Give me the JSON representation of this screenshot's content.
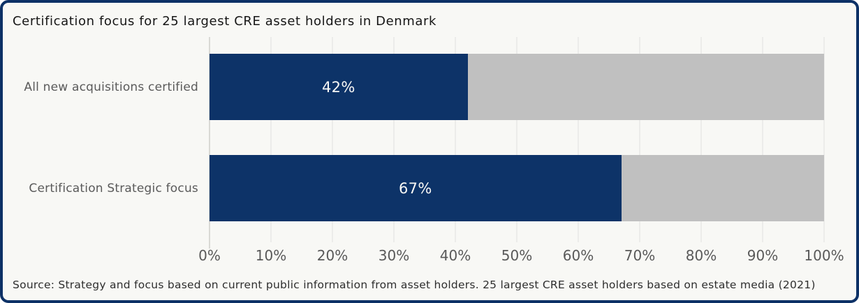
{
  "title": "Certification focus for 25 largest CRE asset holders in Denmark",
  "source": "Source: Strategy and focus based on current public information from asset holders. 25 largest CRE asset holders based on estate media (2021)",
  "chart_data": {
    "type": "bar",
    "orientation": "horizontal",
    "title": "Certification focus for 25 largest CRE asset holders in Denmark",
    "categories": [
      "All new acquisitions certified",
      "Certification Strategic focus"
    ],
    "values": [
      42,
      67
    ],
    "value_labels": [
      "42%",
      "67%"
    ],
    "x_tick_labels": [
      "0%",
      "10%",
      "20%",
      "30%",
      "40%",
      "50%",
      "60%",
      "70%",
      "80%",
      "90%",
      "100%"
    ],
    "xlim": [
      0,
      100
    ],
    "grid": "vertical",
    "legend": "none",
    "colors": {
      "bar_fill": "#0d3368",
      "bar_remainder": "#c0c0c0",
      "value_label_text": "#f8f8f5",
      "background": "#f8f8f5",
      "border": "#0d3166",
      "gridline": "#ececea",
      "axis_line": "#d9d9d5",
      "tick_text": "#595959",
      "category_text": "#5a5a5a"
    }
  }
}
